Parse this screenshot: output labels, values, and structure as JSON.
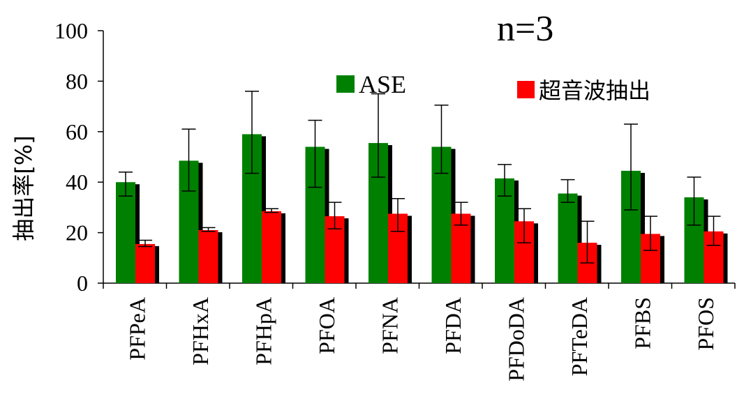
{
  "chart_data": {
    "type": "bar",
    "annotation": "n=3",
    "ylabel": "抽出率[%]",
    "ylim": [
      0,
      100
    ],
    "yticks": [
      0,
      20,
      40,
      60,
      80,
      100
    ],
    "grid": false,
    "legend_position": "top-right",
    "categories": [
      "PFPeA",
      "PFHxA",
      "PFHpA",
      "PFOA",
      "PFNA",
      "PFDA",
      "PFDoDA",
      "PFTeDA",
      "PFBS",
      "PFOS"
    ],
    "series": [
      {
        "name": "ASE",
        "color": "#008000",
        "values": [
          40,
          48.5,
          59,
          54,
          55.5,
          54,
          41.5,
          35.5,
          44.5,
          34
        ],
        "err_low": [
          34.5,
          36.5,
          43.5,
          38,
          42,
          43.5,
          34.5,
          32,
          29,
          23
        ],
        "err_high": [
          44,
          61,
          76,
          64.5,
          75,
          70.5,
          47,
          41,
          63,
          42
        ]
      },
      {
        "name": "超音波抽出",
        "color": "#ff0000",
        "values": [
          15.5,
          21,
          28.5,
          26.5,
          27.5,
          27.5,
          24.5,
          16,
          19.5,
          20.5
        ],
        "err_low": [
          14.5,
          20.5,
          28,
          21.5,
          20.5,
          23,
          16,
          8,
          13,
          15
        ],
        "err_high": [
          17,
          22,
          29.5,
          32,
          33.5,
          32,
          29.5,
          24.5,
          26.5,
          26.5
        ]
      }
    ]
  }
}
